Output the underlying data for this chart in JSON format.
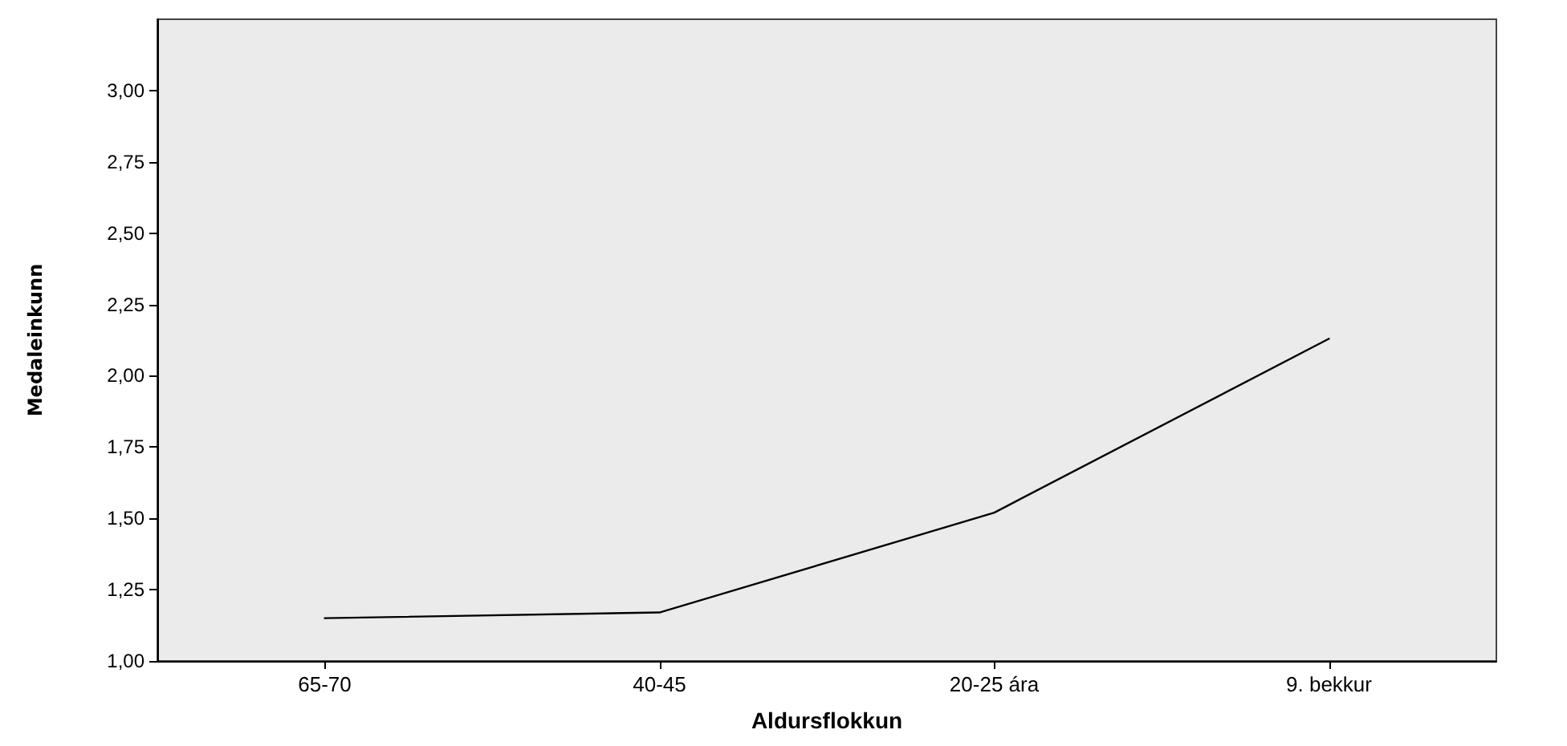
{
  "chart_data": {
    "type": "line",
    "xlabel": "Aldursflokkun",
    "ylabel": "Medaleinkunn",
    "categories": [
      "65-70",
      "40-45",
      "20-25 ára",
      "9. bekkur"
    ],
    "series": [
      {
        "color": "#000000",
        "values": [
          1.15,
          1.17,
          1.52,
          2.13
        ]
      }
    ],
    "ylim": [
      1,
      3.25
    ],
    "yticks": [
      {
        "value": 1,
        "label": "1,00"
      },
      {
        "value": 1.25,
        "label": "1,25"
      },
      {
        "value": 1.5,
        "label": "1,50"
      },
      {
        "value": 1.75,
        "label": "1,75"
      },
      {
        "value": 2,
        "label": "2,00"
      },
      {
        "value": 2.25,
        "label": "2,25"
      },
      {
        "value": 2.5,
        "label": "2,50"
      },
      {
        "value": 2.75,
        "label": "2,75"
      },
      {
        "value": 3,
        "label": "3,00"
      }
    ],
    "grid": false,
    "marker": "none",
    "line_style": "solid"
  }
}
